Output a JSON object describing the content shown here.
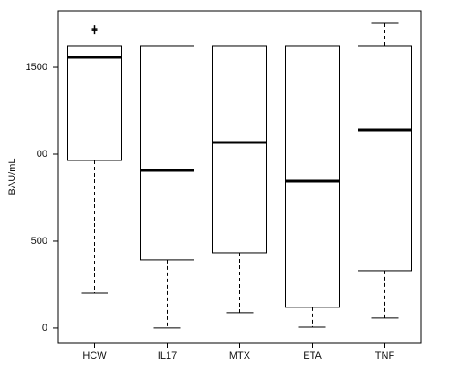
{
  "chart_data": {
    "type": "box",
    "ylabel": "BAU/mL",
    "categories": [
      "HCW",
      "IL17",
      "MTX",
      "ETA",
      "TNF"
    ],
    "whisker_low": [
      201,
      0,
      88,
      5,
      57
    ],
    "q1": [
      964,
      392,
      433,
      119,
      330
    ],
    "median": [
      1557,
      907,
      1067,
      845,
      1139
    ],
    "q3": [
      1624,
      1624,
      1624,
      1624,
      1624
    ],
    "whisker_high": [
      1624,
      1624,
      1624,
      1624,
      1753
    ],
    "outliers": [
      [
        1716
      ],
      [],
      [],
      [],
      []
    ],
    "ylim": [
      -88,
      1825
    ],
    "yticks": [
      0,
      500,
      {
        "value": 1000,
        "label": "00"
      },
      1500
    ],
    "color": "#000000"
  }
}
